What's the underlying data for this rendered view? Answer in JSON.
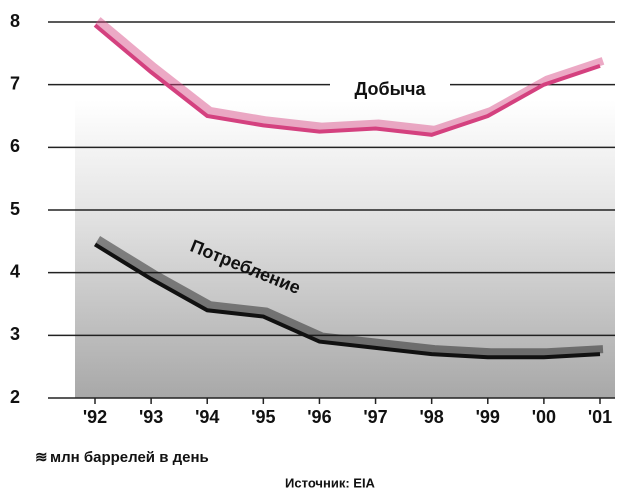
{
  "chart_data": {
    "type": "line",
    "categories": [
      "'92",
      "'93",
      "'94",
      "'95",
      "'96",
      "'97",
      "'98",
      "'99",
      "'00",
      "'01"
    ],
    "series": [
      {
        "name": "Добыча",
        "color": "#d4417f",
        "values": [
          7.95,
          7.2,
          6.5,
          6.35,
          6.25,
          6.3,
          6.2,
          6.5,
          7.0,
          7.3
        ]
      },
      {
        "name": "Потребление",
        "color": "#111111",
        "values": [
          4.45,
          3.9,
          3.4,
          3.3,
          2.9,
          2.8,
          2.7,
          2.65,
          2.65,
          2.7
        ]
      }
    ],
    "ylim": [
      2,
      8
    ],
    "yticks": [
      2,
      3,
      4,
      5,
      6,
      7,
      8
    ],
    "grid": true,
    "ylabel": "млн баррелей в день",
    "source": "Источник: EIA"
  }
}
